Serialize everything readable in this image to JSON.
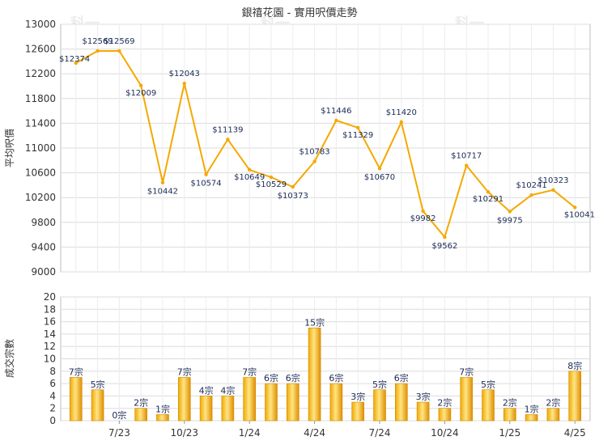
{
  "title": "銀禧花園 - 實用呎價走勢",
  "watermark": "科一",
  "colors": {
    "line": "#f5a800",
    "bar_light": "#ffe27a",
    "bar_dark": "#e79a00",
    "grid": "#dcdcdc",
    "text": "#333333",
    "label": "#1a2a55"
  },
  "chart_data": [
    {
      "type": "line",
      "ylabel": "平均呎價",
      "ylim": [
        9000,
        13000
      ],
      "yticks": [
        9000,
        9400,
        9800,
        10200,
        10600,
        11000,
        11400,
        11800,
        12200,
        12600,
        13000
      ],
      "x": [
        1,
        2,
        3,
        4,
        5,
        6,
        7,
        8,
        9,
        10,
        11,
        12,
        13,
        14,
        15,
        16,
        17,
        18,
        19,
        20,
        21,
        22,
        23,
        24
      ],
      "values": [
        12374,
        12569,
        12569,
        12009,
        10442,
        12043,
        10574,
        11139,
        10649,
        10529,
        10373,
        10783,
        11446,
        11329,
        10670,
        11420,
        9982,
        9562,
        10717,
        10291,
        9975,
        10241,
        10323,
        10041
      ],
      "labels": [
        "$12374",
        "$12569",
        "$12569",
        "$12009",
        "$10442",
        "$12043",
        "$10574",
        "$11139",
        "$10649",
        "$10529",
        "$10373",
        "$10783",
        "$11446",
        "$11329",
        "$10670",
        "$11420",
        "$9982",
        "$9562",
        "$10717",
        "$10291",
        "$9975",
        "$10241",
        "$10323",
        "$10041"
      ],
      "grid": true
    },
    {
      "type": "bar",
      "ylabel": "成交宗數",
      "ylim": [
        0,
        20
      ],
      "yticks": [
        0,
        2,
        4,
        6,
        8,
        10,
        12,
        14,
        16,
        18,
        20
      ],
      "values": [
        7,
        5,
        0,
        2,
        1,
        7,
        4,
        4,
        7,
        6,
        6,
        15,
        6,
        3,
        5,
        6,
        3,
        2,
        7,
        5,
        2,
        1,
        2,
        8
      ],
      "labels": [
        "7宗",
        "5宗",
        "0宗",
        "2宗",
        "1宗",
        "7宗",
        "4宗",
        "4宗",
        "7宗",
        "6宗",
        "6宗",
        "15宗",
        "6宗",
        "3宗",
        "5宗",
        "6宗",
        "3宗",
        "2宗",
        "7宗",
        "5宗",
        "2宗",
        "1宗",
        "2宗",
        "8宗"
      ],
      "xticks": [
        {
          "label": "7/23",
          "at": 3
        },
        {
          "label": "10/23",
          "at": 6
        },
        {
          "label": "1/24",
          "at": 9
        },
        {
          "label": "4/24",
          "at": 12
        },
        {
          "label": "7/24",
          "at": 15
        },
        {
          "label": "10/24",
          "at": 18
        },
        {
          "label": "1/25",
          "at": 21
        },
        {
          "label": "4/25",
          "at": 24
        }
      ],
      "grid": true
    }
  ]
}
